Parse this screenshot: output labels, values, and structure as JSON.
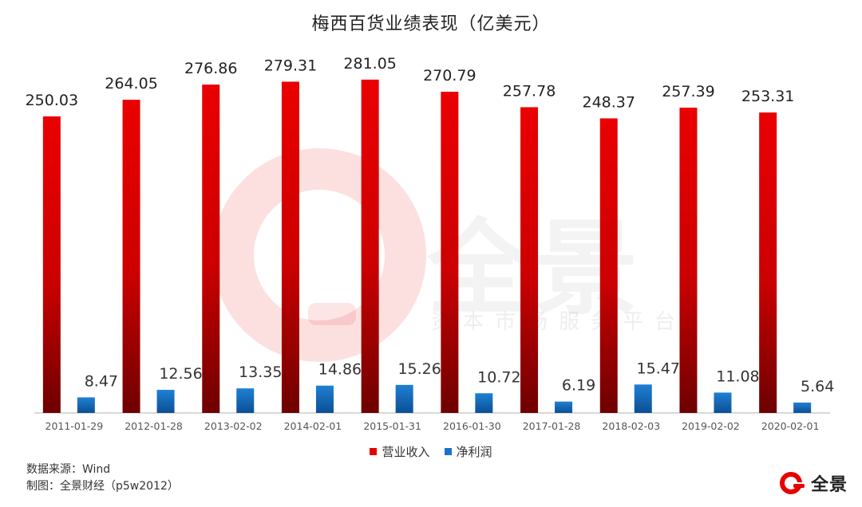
{
  "chart_data": {
    "type": "bar",
    "title": "梅西百货业绩表现（亿美元）",
    "categories": [
      "2011-01-29",
      "2012-01-28",
      "2013-02-02",
      "2014-02-01",
      "2015-01-31",
      "2016-01-30",
      "2017-01-28",
      "2018-02-03",
      "2019-02-02",
      "2020-02-01"
    ],
    "series": [
      {
        "name": "营业收入",
        "color": "#e60000",
        "values": [
          250.03,
          264.05,
          276.86,
          279.31,
          281.05,
          270.79,
          257.78,
          248.37,
          257.39,
          253.31
        ]
      },
      {
        "name": "净利润",
        "color": "#1a73c8",
        "values": [
          8.47,
          12.56,
          13.35,
          14.86,
          15.26,
          10.72,
          6.19,
          15.47,
          11.08,
          5.64
        ]
      }
    ],
    "value_labels": {
      "revenue": [
        "250.03",
        "264.05",
        "276.86",
        "279.31",
        "281.05",
        "270.79",
        "257.78",
        "248.37",
        "257.39",
        "253.31"
      ],
      "profit": [
        "8.47",
        "12.56",
        "13.35",
        "14.86",
        "15.26",
        "10.72",
        "6.19",
        "15.47",
        "11.08",
        "5.64"
      ]
    },
    "ylim": [
      0,
      285
    ],
    "grid": false,
    "legend_position": "bottom"
  },
  "footer": {
    "source": "数据来源：Wind",
    "credit": "制图：全景财经（p5w2012）"
  },
  "watermark": {
    "text": "全景",
    "subtext": "资本市场服务平台"
  },
  "logo": {
    "text": "全景",
    "icon": "quanjing-logo-icon"
  }
}
